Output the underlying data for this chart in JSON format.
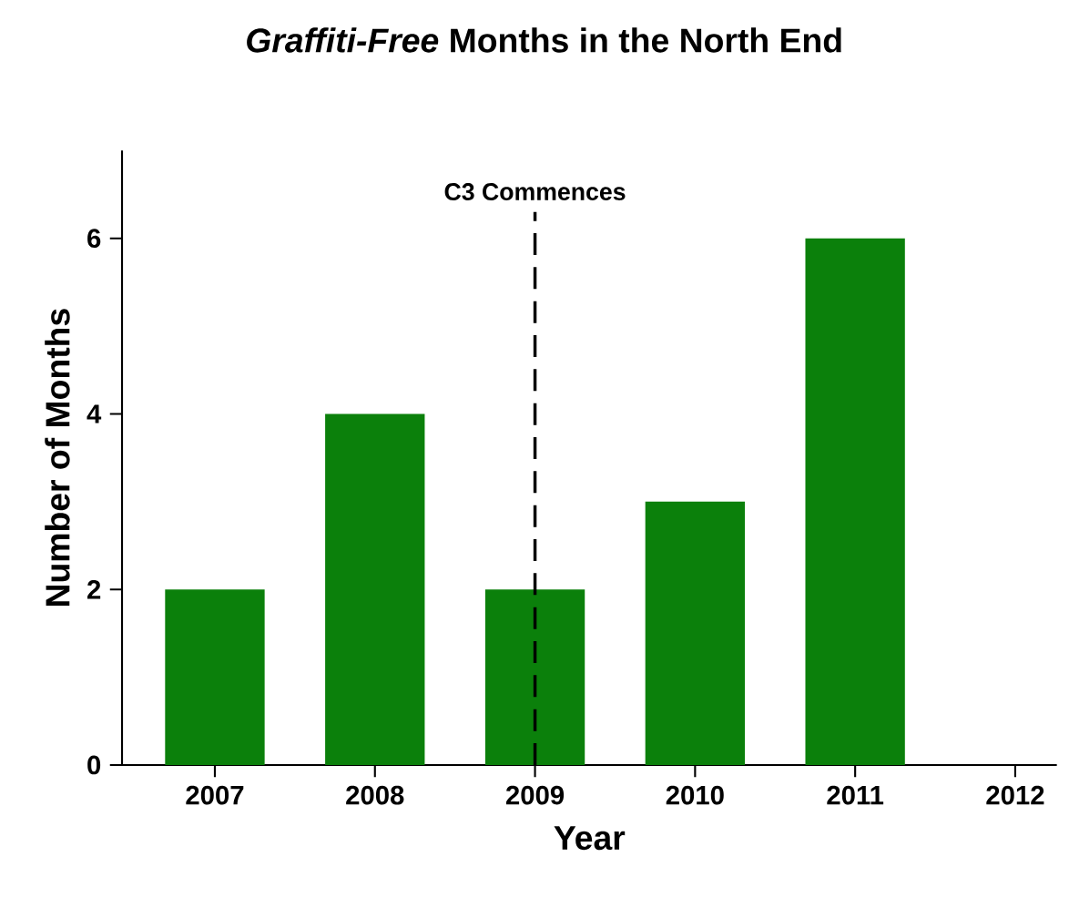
{
  "chart_data": {
    "type": "bar",
    "title": "*Graffiti-Free* Months in the North End",
    "xlabel": "Year",
    "ylabel": "Number of Months",
    "x": [
      2007,
      2008,
      2009,
      2010,
      2011
    ],
    "values": [
      2,
      4,
      2,
      3,
      6
    ],
    "color": "#0b800b",
    "xlim": [
      2006.42,
      2012.26
    ],
    "xticks": [
      2007,
      2008,
      2009,
      2010,
      2011,
      2012
    ],
    "ylim": [
      0,
      7
    ],
    "yticks": [
      0,
      2,
      4,
      6
    ],
    "ref_lines": [
      {
        "axis": "x",
        "value": 2009,
        "label": "C3 Commences",
        "line_style": "dashed"
      }
    ]
  }
}
